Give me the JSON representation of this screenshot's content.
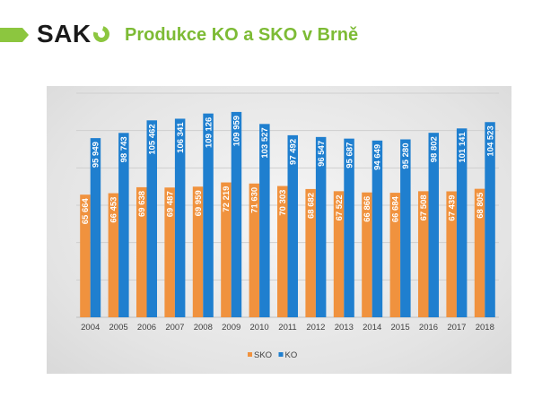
{
  "header": {
    "logo_text": "SAK",
    "title": "Produkce KO a SKO v Brně"
  },
  "colors": {
    "accent_green": "#8cc63f",
    "sko": "#f0923e",
    "ko": "#1f7fcf"
  },
  "chart_data": {
    "type": "bar",
    "categories": [
      "2004",
      "2005",
      "2006",
      "2007",
      "2008",
      "2009",
      "2010",
      "2011",
      "2012",
      "2013",
      "2014",
      "2015",
      "2016",
      "2017",
      "2018"
    ],
    "series": [
      {
        "name": "SKO",
        "values": [
          65664,
          66453,
          69638,
          69487,
          69959,
          72219,
          71630,
          70303,
          68682,
          67522,
          66866,
          66684,
          67508,
          67439,
          68805
        ],
        "labels": [
          "65 664",
          "66 453",
          "69 638",
          "69 487",
          "69 959",
          "72 219",
          "71 630",
          "70 303",
          "68 682",
          "67 522",
          "66 866",
          "66 684",
          "67 508",
          "67 439",
          "68 805"
        ]
      },
      {
        "name": "KO",
        "values": [
          95949,
          98743,
          105462,
          106341,
          109126,
          109959,
          103527,
          97492,
          96547,
          95687,
          94649,
          95280,
          98802,
          101141,
          104523
        ],
        "labels": [
          "95 949",
          "98 743",
          "105 462",
          "106 341",
          "109 126",
          "109 959",
          "103 527",
          "97 492",
          "96 547",
          "95 687",
          "94 649",
          "95 280",
          "98 802",
          "101 141",
          "104 523"
        ]
      }
    ],
    "ylim": [
      0,
      120000
    ],
    "gridlines": true,
    "legend_position": "bottom"
  }
}
